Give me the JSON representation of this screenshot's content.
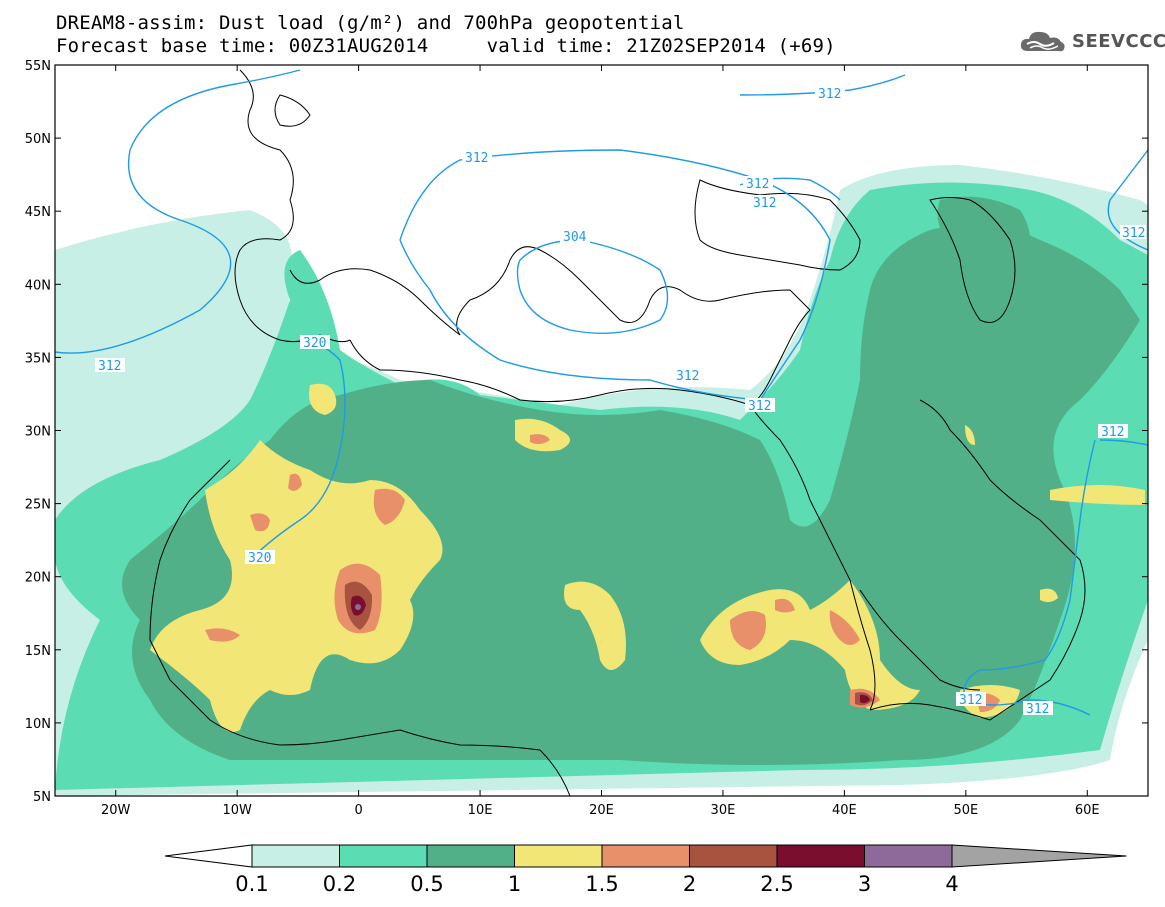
{
  "title": {
    "line1": "DREAM8-assim: Dust load (g/m²) and 700hPa geopotential",
    "line2": "Forecast base time: 00Z31AUG2014     valid time: 21Z02SEP2014 (+69)"
  },
  "logo": {
    "text": "SEEVCCC",
    "icon": "cloud-icon"
  },
  "axes": {
    "lat_labels": [
      "55N",
      "50N",
      "45N",
      "40N",
      "35N",
      "30N",
      "25N",
      "20N",
      "15N",
      "10N",
      "5N"
    ],
    "lon_labels": [
      "20W",
      "10W",
      "0",
      "10E",
      "20E",
      "30E",
      "40E",
      "50E",
      "60E"
    ],
    "lat_range": [
      5,
      55
    ],
    "lon_range": [
      -25,
      65
    ]
  },
  "contours": {
    "label_312": "312",
    "label_320": "320",
    "label_304": "304"
  },
  "colorbar": {
    "levels": [
      "0.1",
      "0.2",
      "0.5",
      "1",
      "1.5",
      "2",
      "2.5",
      "3",
      "4"
    ],
    "colors": [
      "#c7efe6",
      "#5bdcb3",
      "#52b088",
      "#f2e677",
      "#e8906a",
      "#a85340",
      "#7a0e2e",
      "#8e6a9b",
      "#a3a3a3"
    ],
    "left_extend_color": "#ffffff"
  }
}
